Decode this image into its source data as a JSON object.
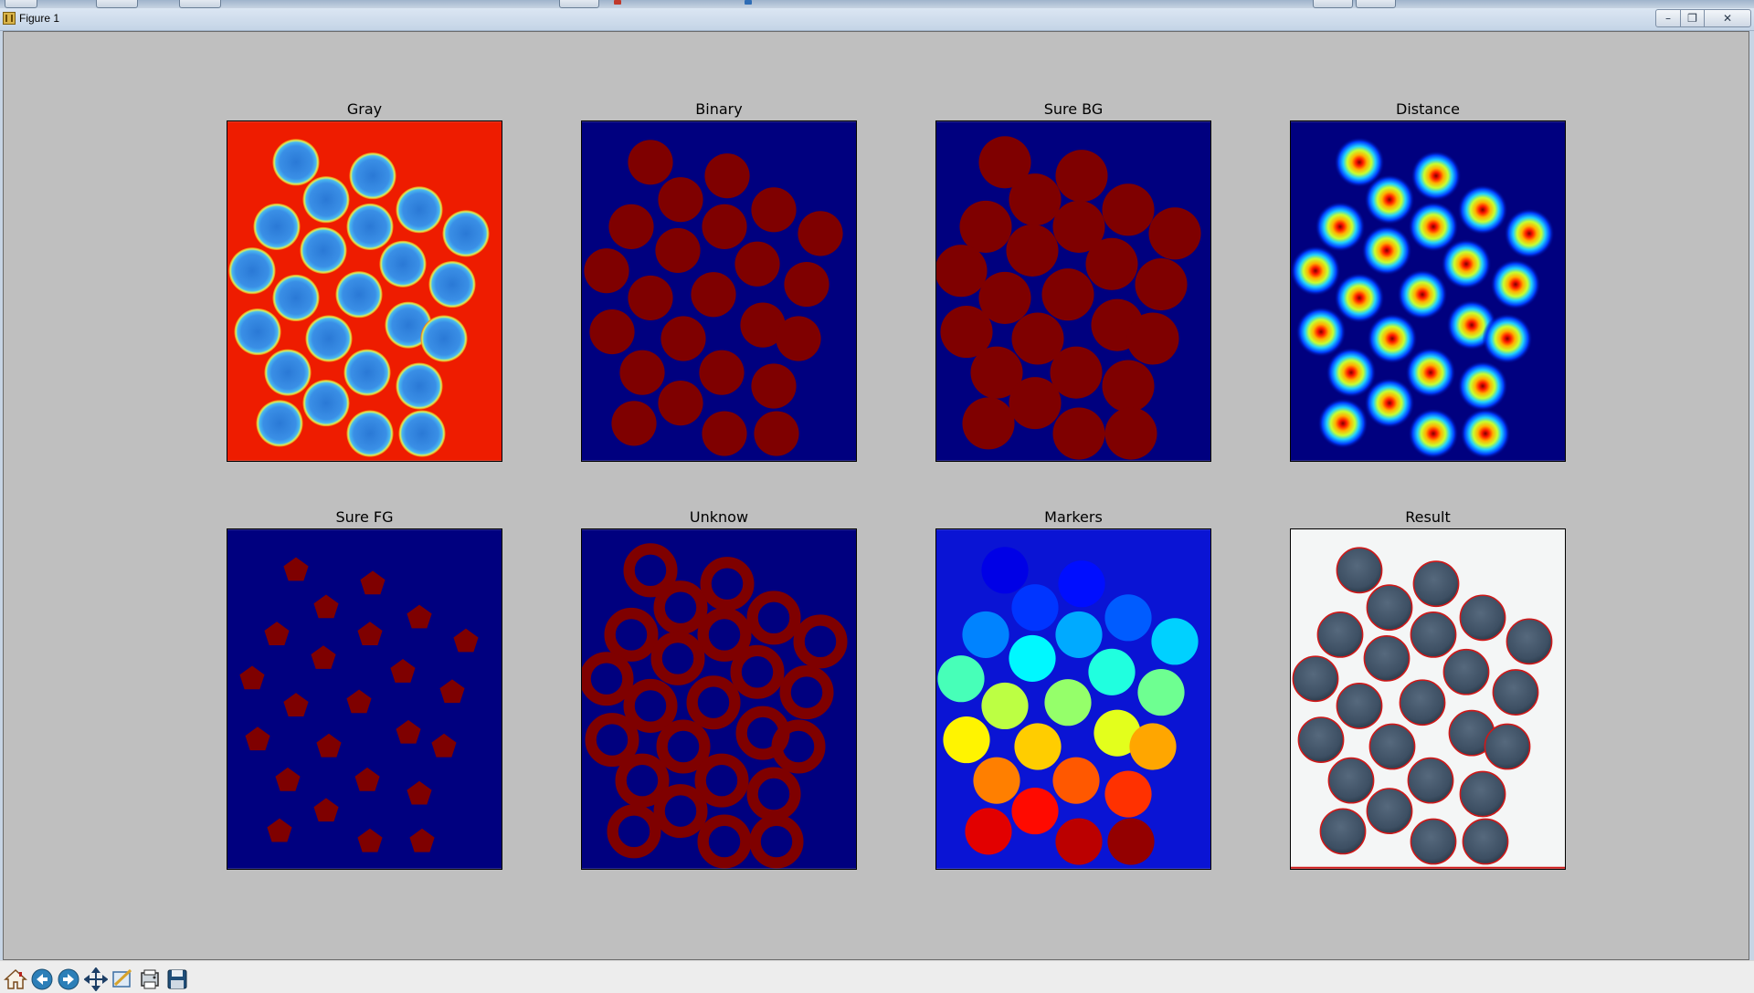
{
  "window": {
    "title": "Figure 1",
    "minimize_label": "–",
    "maximize_label": "❐",
    "close_label": "✕"
  },
  "figure": {
    "background": "#bfbfbf",
    "subplots": [
      {
        "title": "Gray",
        "kind": "gray"
      },
      {
        "title": "Binary",
        "kind": "binary"
      },
      {
        "title": "Sure BG",
        "kind": "surebg"
      },
      {
        "title": "Distance",
        "kind": "distance"
      },
      {
        "title": "Sure FG",
        "kind": "surefg"
      },
      {
        "title": "Unknow",
        "kind": "unknown"
      },
      {
        "title": "Markers",
        "kind": "markers"
      },
      {
        "title": "Result",
        "kind": "result"
      }
    ],
    "colormap": {
      "dark_blue": "#00007f",
      "blue": "#0000ff",
      "dark_red": "#7f0000",
      "red": "#ff0000",
      "marker_background": "#0a14d4",
      "result_background": "#f4f6f6",
      "coin_gray": "#3d4f63",
      "contour": "#d01818"
    }
  },
  "toolbar": {
    "buttons": [
      {
        "name": "home-icon",
        "label": "Home"
      },
      {
        "name": "back-arrow-icon",
        "label": "Back"
      },
      {
        "name": "forward-arrow-icon",
        "label": "Forward"
      },
      {
        "name": "pan-icon",
        "label": "Pan"
      },
      {
        "name": "zoom-rect-icon",
        "label": "Zoom"
      },
      {
        "name": "subplots-config-icon",
        "label": "Configure subplots"
      },
      {
        "name": "save-icon",
        "label": "Save"
      }
    ]
  }
}
